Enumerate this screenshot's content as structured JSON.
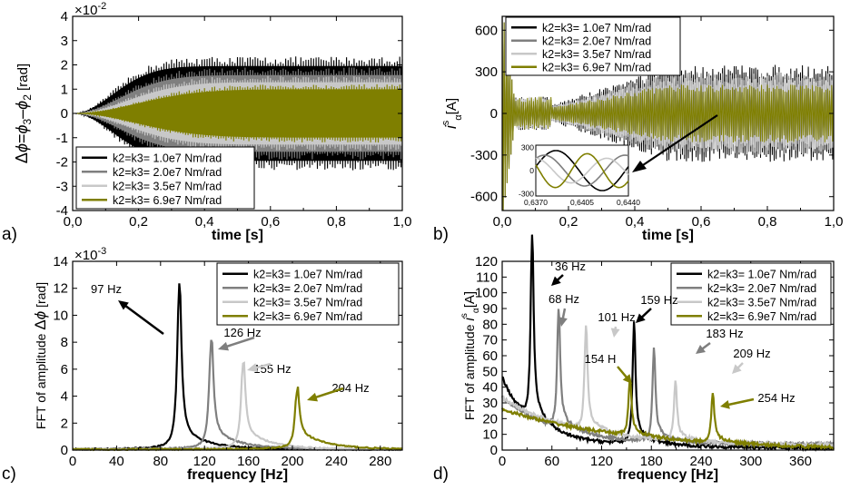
{
  "chart_data": [
    {
      "id": "a",
      "type": "line",
      "panel_label": "a)",
      "xlabel": "time [s]",
      "ylabel_parts": [
        "Δ",
        "ϕ",
        "=",
        "ϕ",
        "3",
        "–",
        "ϕ",
        "2",
        " [rad]"
      ],
      "xlim": [
        0,
        1.0
      ],
      "ylim": [
        -0.04,
        0.04
      ],
      "x_ticks": [
        "0,0",
        "0,2",
        "0,4",
        "0,6",
        "0,8",
        "1,0"
      ],
      "y_ticks": [
        "-4",
        "-3",
        "-2",
        "-1",
        "0",
        "1",
        "2",
        "3",
        "4"
      ],
      "y_multiplier": [
        "×10",
        "-2"
      ],
      "legend_position": "bottom-left",
      "series": [
        {
          "name": "k2=k3= 1.0e7 Nm/rad",
          "color": "#000000",
          "envelope_final": 0.0235,
          "rise_tau": 0.17
        },
        {
          "name": "k2=k3= 2.0e7 Nm/rad",
          "color": "#7f7f7f",
          "envelope_final": 0.019,
          "rise_tau": 0.2
        },
        {
          "name": "k2=k3= 3.5e7 Nm/rad",
          "color": "#c8c8c8",
          "envelope_final": 0.0155,
          "rise_tau": 0.23
        },
        {
          "name": "k2=k3= 6.9e7 Nm/rad",
          "color": "#7f7f00",
          "envelope_final": 0.012,
          "rise_tau": 0.27
        }
      ]
    },
    {
      "id": "b",
      "type": "line",
      "panel_label": "b)",
      "xlabel": "time [s]",
      "ylabel_parts": [
        "i",
        "s",
        "α",
        "[A]"
      ],
      "xlim": [
        0,
        1.0
      ],
      "ylim": [
        -700,
        700
      ],
      "x_ticks": [
        "0,0",
        "0,2",
        "0,4",
        "0,6",
        "0,8",
        "1,0"
      ],
      "y_ticks": [
        "-600",
        "-300",
        "0",
        "300",
        "600"
      ],
      "legend_position": "top-left",
      "series": [
        {
          "name": "k2=k3= 1.0e7 Nm/rad",
          "color": "#000000",
          "envelope_final": 330
        },
        {
          "name": "k2=k3= 2.0e7 Nm/rad",
          "color": "#7f7f7f",
          "envelope_final": 280
        },
        {
          "name": "k2=k3= 3.5e7 Nm/rad",
          "color": "#c8c8c8",
          "envelope_final": 240
        },
        {
          "name": "k2=k3= 6.9e7 Nm/rad",
          "color": "#7f7f00",
          "envelope_final": 190
        }
      ],
      "inset": {
        "xlim": [
          0.637,
          0.644
        ],
        "ylim": [
          -330,
          330
        ],
        "x_ticks": [
          "0,6370",
          "0,6405",
          "0,6440"
        ],
        "y_ticks": [
          "-300",
          "0",
          "300"
        ]
      }
    },
    {
      "id": "c",
      "type": "line",
      "panel_label": "c)",
      "xlabel": "frequency [Hz]",
      "ylabel_parts": [
        "FFT of amplitude ",
        "Δ",
        "ϕ",
        " [rad]"
      ],
      "xlim": [
        0,
        300
      ],
      "ylim": [
        0,
        0.014
      ],
      "x_ticks": [
        "0",
        "40",
        "80",
        "120",
        "160",
        "200",
        "240",
        "280"
      ],
      "y_ticks": [
        "0",
        "2",
        "4",
        "6",
        "8",
        "10",
        "12",
        "14"
      ],
      "y_multiplier": [
        "×10",
        "-3"
      ],
      "legend_position": "top-right",
      "series": [
        {
          "name": "k2=k3= 1.0e7 Nm/rad",
          "color": "#000000",
          "peak_hz": 97,
          "peak_value": 0.0122
        },
        {
          "name": "k2=k3= 2.0e7 Nm/rad",
          "color": "#7f7f7f",
          "peak_hz": 126,
          "peak_value": 0.008
        },
        {
          "name": "k2=k3= 3.5e7 Nm/rad",
          "color": "#c8c8c8",
          "peak_hz": 155,
          "peak_value": 0.0062
        },
        {
          "name": "k2=k3= 6.9e7 Nm/rad",
          "color": "#7f7f00",
          "peak_hz": 204,
          "peak_value": 0.0041
        }
      ],
      "annotations": [
        "97 Hz",
        "126 Hz",
        "155 Hz",
        "204 Hz"
      ]
    },
    {
      "id": "d",
      "type": "line",
      "panel_label": "d)",
      "xlabel": "frequency [Hz]",
      "ylabel_parts": [
        "FFT of amplitude  ",
        "i",
        "s",
        "α",
        "[A]"
      ],
      "xlim": [
        0,
        400
      ],
      "ylim": [
        0,
        120
      ],
      "x_ticks": [
        "0",
        "60",
        "120",
        "180",
        "240",
        "300",
        "360"
      ],
      "y_ticks": [
        "0",
        "10",
        "20",
        "30",
        "40",
        "50",
        "60",
        "70",
        "80",
        "90",
        "100",
        "110",
        "120"
      ],
      "legend_position": "top-right",
      "series": [
        {
          "name": "k2=k3= 1.0e7 Nm/rad",
          "color": "#000000",
          "peaks": [
            [
              36,
              118
            ],
            [
              159,
              77
            ]
          ]
        },
        {
          "name": "k2=k3= 2.0e7 Nm/rad",
          "color": "#7f7f7f",
          "peaks": [
            [
              68,
              76
            ],
            [
              183,
              59
            ]
          ]
        },
        {
          "name": "k2=k3= 3.5e7 Nm/rad",
          "color": "#c8c8c8",
          "peaks": [
            [
              101,
              67
            ],
            [
              209,
              38
            ]
          ]
        },
        {
          "name": "k2=k3= 6.9e7 Nm/rad",
          "color": "#7f7f00",
          "peaks": [
            [
              154,
              36
            ],
            [
              254,
              32
            ]
          ]
        }
      ],
      "annotations": [
        "36 Hz",
        "68 Hz",
        "101 Hz",
        "154 H",
        "159 Hz",
        "183 Hz",
        "209 Hz",
        "254 Hz"
      ]
    }
  ]
}
